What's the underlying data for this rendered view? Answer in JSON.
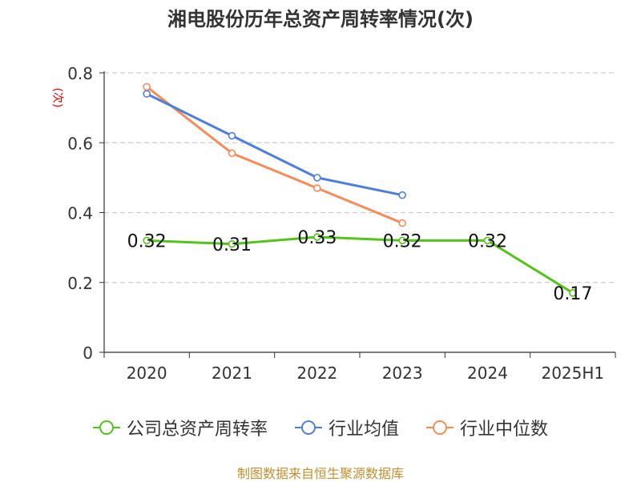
{
  "title": "湘电股份历年总资产周转率情况(次)",
  "unit_label": "(次)",
  "source": "制图数据来自恒生聚源数据库",
  "colors": {
    "company": "#52c41a",
    "industry_avg": "#4e7fdb",
    "industry_median": "#f78c5a",
    "grid": "#cccccc",
    "axis": "#333333"
  },
  "chart_data": {
    "type": "line",
    "categories": [
      "2020",
      "2021",
      "2022",
      "2023",
      "2024",
      "2025H1"
    ],
    "ylim": [
      0,
      0.8
    ],
    "yticks": [
      "0",
      "0.2",
      "0.4",
      "0.6",
      "0.8"
    ],
    "ytick_values": [
      0,
      0.2,
      0.4,
      0.6,
      0.8
    ],
    "grid": true,
    "legend_position": "bottom",
    "series": [
      {
        "name": "公司总资产周转率",
        "key": "company",
        "values": [
          0.32,
          0.31,
          0.33,
          0.32,
          0.32,
          0.17
        ],
        "labels": [
          "0.32",
          "0.31",
          "0.33",
          "0.32",
          "0.32",
          "0.17"
        ]
      },
      {
        "name": "行业均值",
        "key": "industry_avg",
        "values": [
          0.74,
          0.62,
          0.5,
          0.45,
          null,
          null
        ]
      },
      {
        "name": "行业中位数",
        "key": "industry_median",
        "values": [
          0.76,
          0.57,
          0.47,
          0.37,
          null,
          null
        ]
      }
    ]
  }
}
